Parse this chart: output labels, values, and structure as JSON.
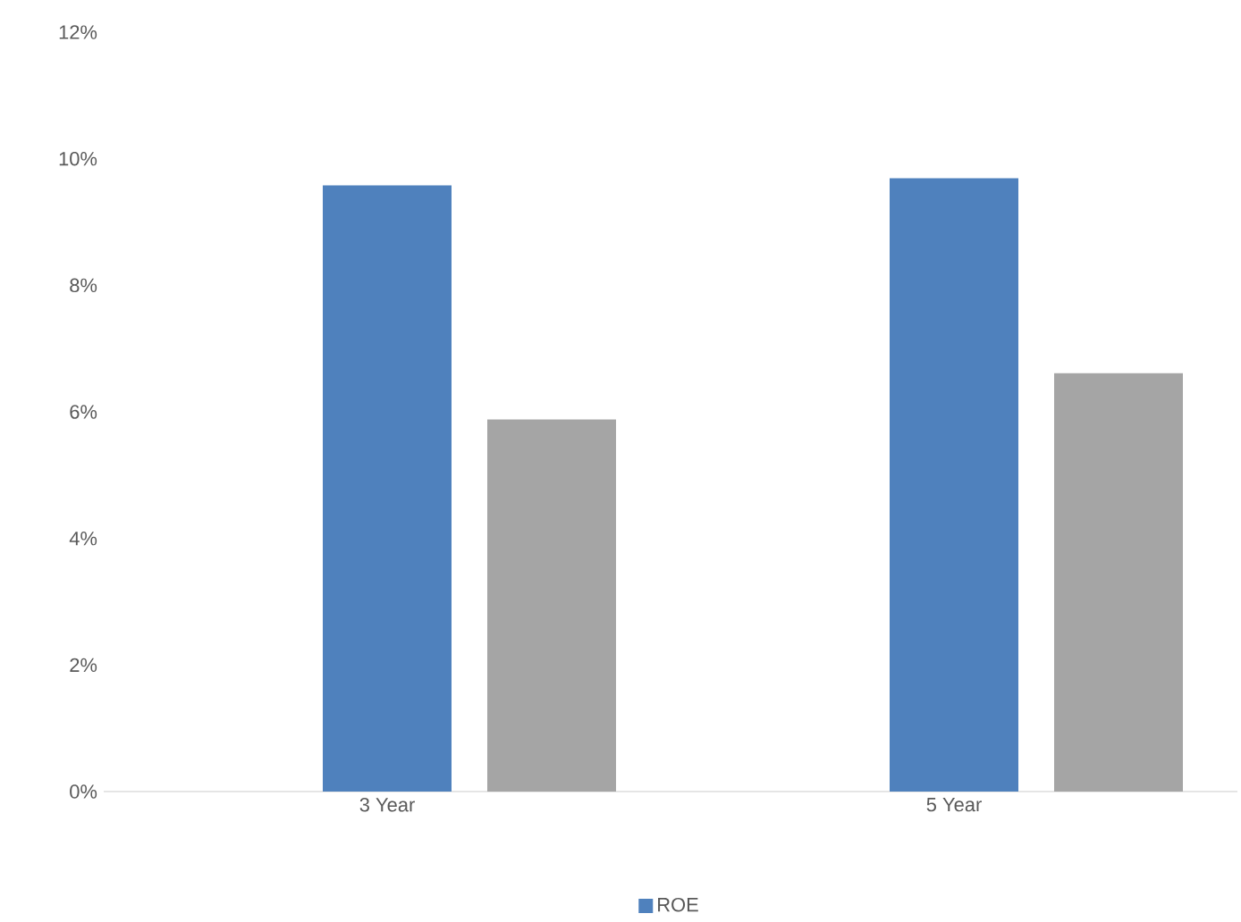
{
  "chart_data": {
    "type": "bar",
    "categories": [
      "3 Year",
      "5 Year"
    ],
    "series": [
      {
        "name": "ROE",
        "color": "#4f81bd",
        "values": [
          9.58,
          9.69
        ]
      },
      {
        "color": "#a5a5a5",
        "values": [
          5.88,
          6.61
        ]
      }
    ],
    "ylim": [
      0,
      12
    ],
    "yticks": [
      {
        "value": 0,
        "label": "0%"
      },
      {
        "value": 2,
        "label": "2%"
      },
      {
        "value": 4,
        "label": "4%"
      },
      {
        "value": 6,
        "label": "6%"
      },
      {
        "value": 8,
        "label": "8%"
      },
      {
        "value": 10,
        "label": "10%"
      },
      {
        "value": 12,
        "label": "12%"
      }
    ],
    "grid": false,
    "legend": "bottom"
  }
}
